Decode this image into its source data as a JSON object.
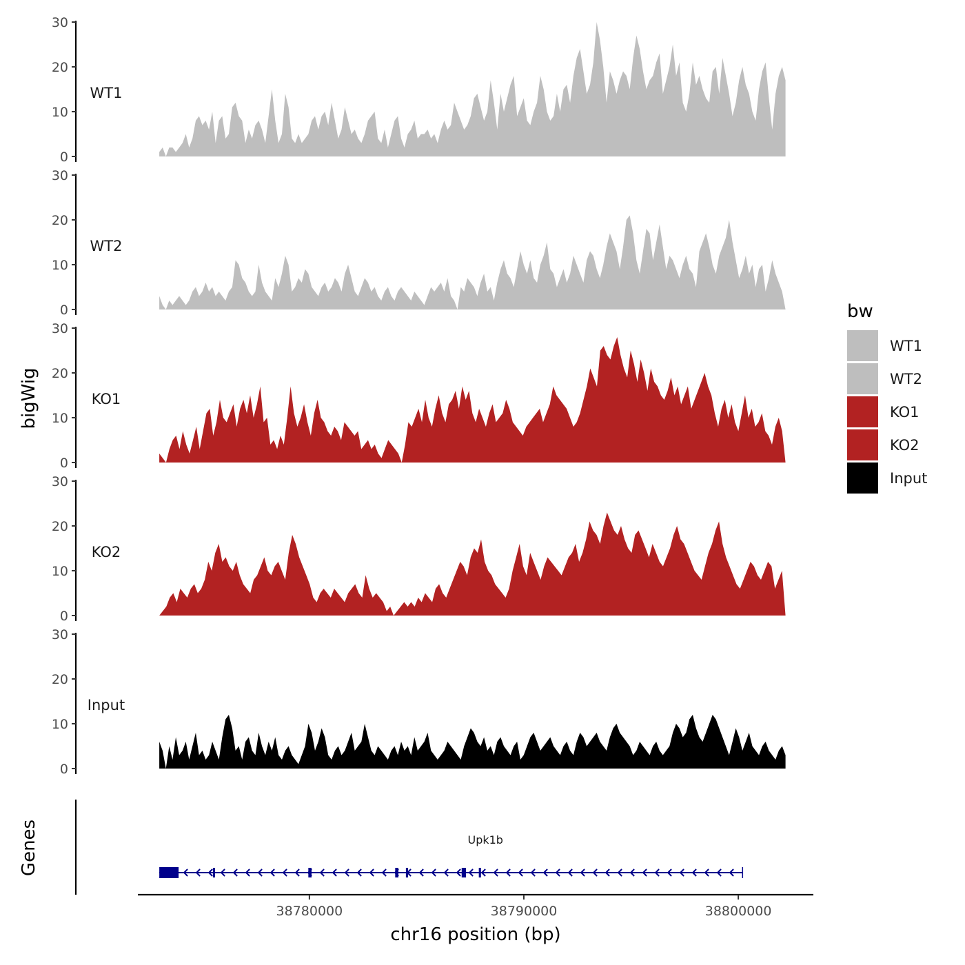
{
  "chart_data": {
    "type": "area",
    "ylabel": "bigWig",
    "xlabel": "chr16 position (bp)",
    "gene_track_label": "Genes",
    "ylim": [
      0,
      30
    ],
    "yticks": [
      "0",
      "10",
      "20",
      "30"
    ],
    "xlim": [
      38772000,
      38803500
    ],
    "xticks": [
      {
        "value": 38780000,
        "label": "38780000"
      },
      {
        "value": 38790000,
        "label": "38790000"
      },
      {
        "value": 38800000,
        "label": "38800000"
      }
    ],
    "x_start": 38773000,
    "x_end": 38802200,
    "legend": {
      "title": "bw",
      "position": "right",
      "items": [
        {
          "label": "WT1",
          "color": "#bebebe"
        },
        {
          "label": "WT2",
          "color": "#bebebe"
        },
        {
          "label": "KO1",
          "color": "#b22222"
        },
        {
          "label": "KO2",
          "color": "#b22222"
        },
        {
          "label": "Input",
          "color": "#000000"
        }
      ]
    },
    "series": [
      {
        "name": "WT1",
        "color": "#bebebe",
        "values": [
          1,
          2,
          0,
          2,
          2,
          1,
          2,
          3,
          5,
          2,
          4,
          8,
          9,
          7,
          8,
          6,
          10,
          3,
          8,
          9,
          4,
          5,
          11,
          12,
          9,
          8,
          3,
          6,
          4,
          7,
          8,
          6,
          3,
          9,
          15,
          8,
          3,
          5,
          14,
          11,
          4,
          3,
          5,
          3,
          4,
          5,
          8,
          9,
          6,
          9,
          10,
          7,
          12,
          8,
          4,
          6,
          11,
          8,
          5,
          6,
          4,
          3,
          5,
          8,
          9,
          10,
          4,
          3,
          6,
          2,
          5,
          8,
          9,
          4,
          2,
          5,
          6,
          8,
          4,
          5,
          5,
          6,
          4,
          5,
          3,
          6,
          8,
          6,
          7,
          12,
          10,
          8,
          6,
          7,
          9,
          13,
          14,
          11,
          8,
          10,
          17,
          12,
          6,
          14,
          10,
          13,
          16,
          18,
          9,
          11,
          13,
          8,
          7,
          10,
          12,
          18,
          15,
          10,
          8,
          9,
          14,
          10,
          15,
          16,
          12,
          18,
          22,
          24,
          19,
          14,
          16,
          21,
          30,
          26,
          20,
          12,
          19,
          17,
          14,
          17,
          19,
          18,
          15,
          22,
          27,
          24,
          19,
          15,
          17,
          18,
          21,
          23,
          14,
          17,
          20,
          25,
          18,
          21,
          12,
          10,
          14,
          21,
          16,
          18,
          15,
          13,
          12,
          19,
          20,
          14,
          22,
          18,
          14,
          9,
          12,
          17,
          20,
          16,
          14,
          10,
          8,
          15,
          19,
          21,
          13,
          6,
          14,
          18,
          20,
          17
        ]
      },
      {
        "name": "WT2",
        "color": "#bebebe",
        "values": [
          3,
          1,
          0,
          2,
          1,
          2,
          3,
          2,
          1,
          2,
          4,
          5,
          3,
          4,
          6,
          4,
          5,
          3,
          4,
          3,
          2,
          4,
          5,
          11,
          10,
          7,
          6,
          4,
          3,
          4,
          10,
          6,
          4,
          3,
          2,
          7,
          5,
          8,
          12,
          10,
          4,
          5,
          7,
          6,
          9,
          8,
          5,
          4,
          3,
          5,
          6,
          4,
          5,
          7,
          6,
          4,
          8,
          10,
          7,
          4,
          3,
          5,
          7,
          6,
          4,
          5,
          3,
          2,
          4,
          5,
          3,
          2,
          4,
          5,
          4,
          3,
          2,
          4,
          3,
          2,
          1,
          3,
          5,
          4,
          5,
          6,
          4,
          7,
          3,
          2,
          0,
          5,
          4,
          7,
          6,
          5,
          3,
          6,
          8,
          4,
          5,
          2,
          6,
          9,
          11,
          8,
          7,
          5,
          9,
          13,
          10,
          8,
          11,
          7,
          6,
          10,
          12,
          15,
          9,
          8,
          5,
          7,
          9,
          6,
          8,
          12,
          10,
          8,
          6,
          11,
          13,
          12,
          9,
          7,
          10,
          14,
          17,
          15,
          13,
          9,
          14,
          20,
          21,
          17,
          11,
          8,
          13,
          18,
          17,
          11,
          15,
          19,
          14,
          9,
          12,
          11,
          9,
          7,
          10,
          12,
          9,
          8,
          5,
          13,
          15,
          17,
          14,
          10,
          8,
          12,
          14,
          16,
          20,
          15,
          11,
          7,
          9,
          12,
          8,
          10,
          5,
          9,
          10,
          4,
          7,
          11,
          8,
          6,
          4,
          0
        ]
      },
      {
        "name": "KO1",
        "color": "#b22222",
        "values": [
          2,
          1,
          0,
          3,
          5,
          6,
          3,
          7,
          4,
          2,
          5,
          8,
          3,
          7,
          11,
          12,
          6,
          9,
          14,
          10,
          9,
          11,
          13,
          8,
          12,
          14,
          11,
          15,
          10,
          13,
          17,
          9,
          10,
          4,
          5,
          3,
          6,
          4,
          10,
          17,
          11,
          8,
          10,
          13,
          9,
          6,
          11,
          14,
          10,
          9,
          7,
          6,
          8,
          7,
          5,
          9,
          8,
          7,
          6,
          7,
          3,
          4,
          5,
          3,
          4,
          2,
          1,
          3,
          5,
          4,
          3,
          2,
          0,
          4,
          9,
          8,
          10,
          12,
          9,
          14,
          10,
          8,
          12,
          15,
          11,
          9,
          13,
          14,
          16,
          12,
          17,
          14,
          16,
          11,
          9,
          12,
          10,
          8,
          11,
          13,
          9,
          10,
          11,
          14,
          12,
          9,
          8,
          7,
          6,
          8,
          9,
          10,
          11,
          12,
          9,
          11,
          13,
          17,
          15,
          14,
          13,
          12,
          10,
          8,
          9,
          11,
          14,
          17,
          21,
          19,
          17,
          25,
          26,
          24,
          23,
          26,
          28,
          24,
          21,
          19,
          25,
          22,
          18,
          23,
          20,
          16,
          21,
          18,
          17,
          15,
          14,
          16,
          19,
          15,
          17,
          13,
          15,
          17,
          12,
          14,
          16,
          18,
          20,
          17,
          15,
          11,
          8,
          12,
          14,
          10,
          13,
          9,
          7,
          11,
          15,
          10,
          12,
          8,
          9,
          11,
          7,
          6,
          4,
          8,
          10,
          7,
          0
        ]
      },
      {
        "name": "KO2",
        "color": "#b22222",
        "values": [
          0,
          1,
          2,
          4,
          5,
          3,
          6,
          5,
          4,
          6,
          7,
          5,
          6,
          8,
          12,
          10,
          14,
          16,
          12,
          13,
          11,
          10,
          12,
          9,
          7,
          6,
          5,
          8,
          9,
          11,
          13,
          10,
          9,
          11,
          12,
          10,
          8,
          14,
          18,
          16,
          13,
          11,
          9,
          7,
          4,
          3,
          5,
          6,
          5,
          4,
          6,
          5,
          4,
          3,
          5,
          6,
          7,
          5,
          4,
          9,
          6,
          4,
          5,
          4,
          3,
          1,
          2,
          0,
          1,
          2,
          3,
          2,
          3,
          2,
          4,
          3,
          5,
          4,
          3,
          6,
          7,
          5,
          4,
          6,
          8,
          10,
          12,
          11,
          9,
          13,
          15,
          14,
          17,
          12,
          10,
          9,
          7,
          6,
          5,
          4,
          6,
          10,
          13,
          16,
          11,
          9,
          14,
          12,
          10,
          8,
          11,
          13,
          12,
          11,
          10,
          9,
          11,
          13,
          14,
          16,
          12,
          14,
          17,
          21,
          19,
          18,
          16,
          20,
          23,
          21,
          19,
          18,
          20,
          17,
          15,
          14,
          18,
          19,
          17,
          15,
          13,
          16,
          14,
          12,
          11,
          13,
          15,
          18,
          20,
          17,
          16,
          14,
          12,
          10,
          9,
          8,
          11,
          14,
          16,
          19,
          21,
          16,
          13,
          11,
          9,
          7,
          6,
          8,
          10,
          12,
          11,
          9,
          8,
          10,
          12,
          11,
          6,
          8,
          10,
          0
        ]
      },
      {
        "name": "Input",
        "color": "#000000",
        "values": [
          6,
          4,
          0,
          5,
          2,
          7,
          3,
          4,
          6,
          2,
          5,
          8,
          3,
          4,
          2,
          3,
          6,
          4,
          2,
          7,
          11,
          12,
          9,
          4,
          5,
          2,
          6,
          7,
          4,
          3,
          8,
          5,
          3,
          6,
          4,
          7,
          3,
          2,
          4,
          5,
          3,
          2,
          1,
          3,
          5,
          10,
          8,
          4,
          6,
          9,
          7,
          3,
          2,
          4,
          5,
          3,
          4,
          6,
          8,
          4,
          5,
          6,
          10,
          7,
          4,
          3,
          5,
          4,
          3,
          2,
          4,
          5,
          3,
          6,
          4,
          5,
          3,
          7,
          4,
          5,
          6,
          8,
          4,
          3,
          2,
          3,
          4,
          6,
          5,
          4,
          3,
          2,
          5,
          7,
          9,
          8,
          6,
          5,
          7,
          4,
          5,
          3,
          6,
          7,
          5,
          4,
          3,
          5,
          6,
          2,
          3,
          5,
          7,
          8,
          6,
          4,
          5,
          6,
          7,
          5,
          4,
          3,
          5,
          6,
          4,
          3,
          6,
          8,
          7,
          5,
          6,
          7,
          8,
          6,
          5,
          4,
          7,
          9,
          10,
          8,
          7,
          6,
          5,
          3,
          4,
          6,
          5,
          4,
          3,
          5,
          6,
          4,
          3,
          4,
          5,
          8,
          10,
          9,
          7,
          8,
          11,
          12,
          9,
          7,
          6,
          8,
          10,
          12,
          11,
          9,
          7,
          5,
          3,
          6,
          9,
          7,
          4,
          6,
          8,
          5,
          4,
          3,
          5,
          6,
          4,
          3,
          2,
          4,
          5,
          3
        ]
      }
    ],
    "gene": {
      "name": "Upk1b",
      "strand": "-",
      "start": 38773000,
      "end": 38800200,
      "color": "#00008b",
      "exons": [
        {
          "start": 38773000,
          "end": 38773900,
          "type": "utr"
        },
        {
          "start": 38775500,
          "end": 38775600,
          "type": "cds"
        },
        {
          "start": 38779950,
          "end": 38780100,
          "type": "cds"
        },
        {
          "start": 38784000,
          "end": 38784150,
          "type": "cds"
        },
        {
          "start": 38784500,
          "end": 38784600,
          "type": "cds"
        },
        {
          "start": 38787100,
          "end": 38787300,
          "type": "cds"
        },
        {
          "start": 38787900,
          "end": 38788000,
          "type": "cds"
        }
      ]
    }
  }
}
